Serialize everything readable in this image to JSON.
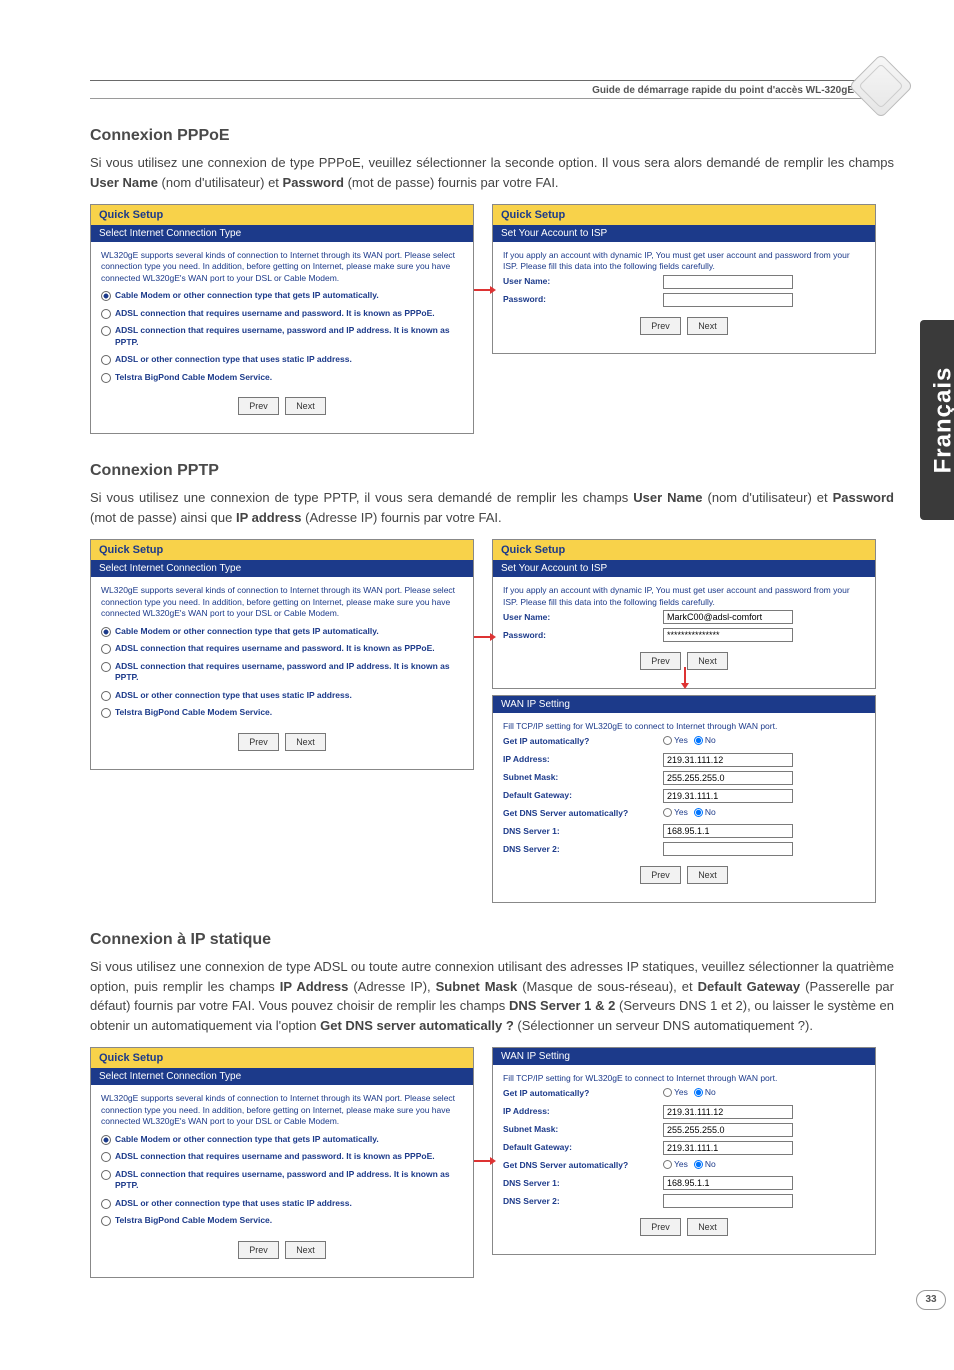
{
  "header": {
    "title": "Guide de démarrage rapide du point d'accès WL-320gE"
  },
  "side_tab": "Français",
  "page_number": "33",
  "common": {
    "prev": "Prev",
    "next": "Next",
    "quick_setup": "Quick Setup",
    "select_type": "Select Internet Connection Type",
    "select_desc": "WL320gE supports several kinds of connection to Internet through its WAN port. Please select connection type you need. In addition, before getting on Internet, please make sure you have connected WL320gE's WAN port to your DSL or Cable Modem.",
    "opt_cable": "Cable Modem or other connection type that gets IP automatically.",
    "opt_pppoe": "ADSL connection that requires username and password. It is known as PPPoE.",
    "opt_pptp": "ADSL connection that requires username, password and IP address. It is known as PPTP.",
    "opt_static": "ADSL or other connection type that uses static IP address.",
    "opt_bigpond": "Telstra BigPond Cable Modem Service."
  },
  "isp_panel": {
    "title": "Set Your Account to ISP",
    "desc": "If you apply an account with dynamic IP, You must get user account and password from your ISP. Please fill this data into the following fields carefully.",
    "user_label": "User Name:",
    "pass_label": "Password:"
  },
  "wan_panel": {
    "title": "WAN IP Setting",
    "desc": "Fill TCP/IP setting for WL320gE to connect to Internet through WAN port.",
    "get_ip": "Get IP automatically?",
    "ip_addr": "IP Address:",
    "subnet": "Subnet Mask:",
    "gateway": "Default Gateway:",
    "get_dns": "Get DNS Server automatically?",
    "dns1": "DNS Server 1:",
    "dns2": "DNS Server 2:",
    "yes": "Yes",
    "no": "No",
    "vals": {
      "ip": "219.31.111.12",
      "mask": "255.255.255.0",
      "gw": "219.31.111.1",
      "d1": "168.95.1.1",
      "d2": ""
    }
  },
  "pptp_isp": {
    "user_val": "MarkC00@adsl-comfort",
    "pass_val": "***************"
  },
  "sections": {
    "pppoe": {
      "heading": "Connexion PPPoE",
      "text": "Si vous utilisez une connexion de type PPPoE, veuillez sélectionner la seconde option. Il vous sera alors demandé de remplir les champs <b>User Name</b> (nom d'utilisateur) et <b>Password</b> (mot de passe) fournis par votre FAI."
    },
    "pptp": {
      "heading": "Connexion PPTP",
      "text": "Si vous utilisez une connexion de type PPTP, il vous sera demandé de remplir les champs <b>User Name</b> (nom d'utilisateur) et <b>Password</b> (mot de passe) ainsi que <b>IP address</b> (Adresse IP) fournis par votre FAI."
    },
    "static": {
      "heading": "Connexion à IP statique",
      "text": "Si vous utilisez une connexion de type ADSL ou toute autre connexion utilisant des adresses IP statiques, veuillez sélectionner la quatrième option, puis remplir les champs <b>IP Address</b> (Adresse IP), <b>Subnet Mask</b> (Masque de sous-réseau), et <b>Default Gateway</b> (Passerelle par défaut) fournis par votre FAI. Vous pouvez choisir de remplir les champs <b>DNS Server 1 & 2</b> (Serveurs DNS 1 et 2), ou laisser le système en obtenir un automatiquement via l'option <b>Get DNS server automatically ?</b> (Sélectionner un serveur DNS automatiquement ?)."
    }
  }
}
